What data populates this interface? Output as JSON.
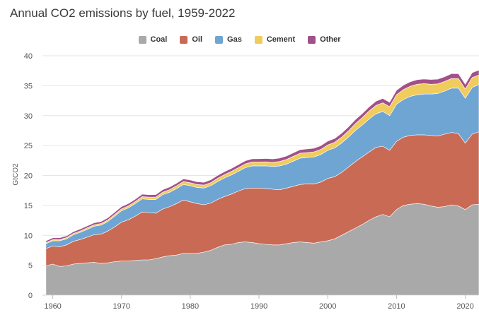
{
  "chart_data": {
    "type": "area",
    "stacked": true,
    "title": "Annual CO2 emissions by fuel, 1959-2022",
    "ylabel": "GtCO2",
    "xlabel": "",
    "ylim": [
      0,
      40
    ],
    "xlim": [
      1958.5,
      2022
    ],
    "yticks": [
      0,
      5,
      10,
      15,
      20,
      25,
      30,
      35,
      40
    ],
    "xticks": [
      1960,
      1970,
      1980,
      1990,
      2000,
      2010,
      2020
    ],
    "grid": true,
    "legend_position": "top-center",
    "x": [
      1959,
      1960,
      1961,
      1962,
      1963,
      1964,
      1965,
      1966,
      1967,
      1968,
      1969,
      1970,
      1971,
      1972,
      1973,
      1974,
      1975,
      1976,
      1977,
      1978,
      1979,
      1980,
      1981,
      1982,
      1983,
      1984,
      1985,
      1986,
      1987,
      1988,
      1989,
      1990,
      1991,
      1992,
      1993,
      1994,
      1995,
      1996,
      1997,
      1998,
      1999,
      2000,
      2001,
      2002,
      2003,
      2004,
      2005,
      2006,
      2007,
      2008,
      2009,
      2010,
      2011,
      2012,
      2013,
      2014,
      2015,
      2016,
      2017,
      2018,
      2019,
      2020,
      2021,
      2022
    ],
    "series": [
      {
        "name": "Coal",
        "color": "#a9a9a9",
        "values": [
          4.9,
          5.2,
          4.8,
          4.9,
          5.2,
          5.3,
          5.4,
          5.5,
          5.3,
          5.4,
          5.6,
          5.7,
          5.7,
          5.8,
          5.9,
          5.9,
          6.1,
          6.4,
          6.6,
          6.7,
          7.0,
          7.0,
          7.0,
          7.2,
          7.5,
          8.0,
          8.4,
          8.5,
          8.8,
          8.9,
          8.8,
          8.6,
          8.5,
          8.4,
          8.4,
          8.6,
          8.8,
          8.9,
          8.8,
          8.7,
          8.9,
          9.1,
          9.4,
          10.0,
          10.6,
          11.2,
          11.8,
          12.5,
          13.1,
          13.5,
          13.1,
          14.3,
          15.0,
          15.2,
          15.3,
          15.2,
          14.9,
          14.7,
          14.8,
          15.1,
          14.9,
          14.3,
          15.1,
          15.2
        ]
      },
      {
        "name": "Oil",
        "color": "#c96a55",
        "values": [
          2.9,
          3.0,
          3.3,
          3.5,
          3.8,
          4.0,
          4.3,
          4.6,
          4.9,
          5.3,
          5.8,
          6.5,
          6.9,
          7.4,
          8.0,
          7.9,
          7.6,
          8.0,
          8.2,
          8.6,
          8.9,
          8.6,
          8.3,
          7.9,
          7.9,
          8.0,
          8.1,
          8.4,
          8.6,
          8.9,
          9.1,
          9.3,
          9.3,
          9.3,
          9.2,
          9.3,
          9.4,
          9.6,
          9.8,
          9.9,
          10.0,
          10.4,
          10.4,
          10.5,
          10.8,
          11.1,
          11.3,
          11.4,
          11.6,
          11.4,
          11.1,
          11.4,
          11.4,
          11.5,
          11.5,
          11.6,
          11.8,
          11.9,
          12.1,
          12.1,
          12.1,
          11.1,
          11.8,
          12.1
        ]
      },
      {
        "name": "Gas",
        "color": "#6fa5d3",
        "values": [
          0.8,
          0.9,
          1.0,
          1.0,
          1.1,
          1.2,
          1.3,
          1.4,
          1.5,
          1.6,
          1.8,
          1.9,
          2.0,
          2.1,
          2.2,
          2.2,
          2.3,
          2.4,
          2.4,
          2.5,
          2.6,
          2.7,
          2.7,
          2.8,
          2.9,
          3.0,
          3.1,
          3.2,
          3.3,
          3.5,
          3.7,
          3.7,
          3.8,
          3.8,
          4.0,
          4.0,
          4.2,
          4.4,
          4.4,
          4.5,
          4.6,
          4.7,
          4.8,
          4.9,
          5.0,
          5.2,
          5.3,
          5.5,
          5.6,
          5.8,
          5.8,
          6.2,
          6.3,
          6.5,
          6.7,
          6.8,
          6.9,
          7.1,
          7.2,
          7.4,
          7.6,
          7.5,
          7.8,
          7.9
        ]
      },
      {
        "name": "Cement",
        "color": "#f0cc5d",
        "values": [
          0.17,
          0.18,
          0.19,
          0.2,
          0.21,
          0.23,
          0.24,
          0.25,
          0.26,
          0.27,
          0.29,
          0.31,
          0.33,
          0.35,
          0.37,
          0.38,
          0.39,
          0.41,
          0.44,
          0.46,
          0.48,
          0.49,
          0.49,
          0.5,
          0.52,
          0.54,
          0.56,
          0.58,
          0.61,
          0.63,
          0.65,
          0.66,
          0.68,
          0.71,
          0.74,
          0.78,
          0.81,
          0.83,
          0.84,
          0.85,
          0.86,
          0.9,
          0.94,
          1.0,
          1.05,
          1.15,
          1.25,
          1.35,
          1.4,
          1.45,
          1.5,
          1.6,
          1.65,
          1.7,
          1.75,
          1.75,
          1.65,
          1.6,
          1.6,
          1.6,
          1.6,
          1.55,
          1.65,
          1.6
        ]
      },
      {
        "name": "Other",
        "color": "#a2508a",
        "values": [
          0.3,
          0.3,
          0.3,
          0.3,
          0.3,
          0.31,
          0.32,
          0.33,
          0.34,
          0.35,
          0.36,
          0.37,
          0.38,
          0.39,
          0.4,
          0.4,
          0.41,
          0.42,
          0.43,
          0.44,
          0.45,
          0.45,
          0.45,
          0.46,
          0.47,
          0.48,
          0.49,
          0.5,
          0.51,
          0.52,
          0.53,
          0.54,
          0.55,
          0.55,
          0.56,
          0.57,
          0.58,
          0.59,
          0.6,
          0.61,
          0.62,
          0.63,
          0.64,
          0.65,
          0.66,
          0.67,
          0.68,
          0.69,
          0.7,
          0.71,
          0.72,
          0.73,
          0.74,
          0.75,
          0.76,
          0.77,
          0.78,
          0.79,
          0.8,
          0.81,
          0.82,
          0.8,
          0.82,
          0.82
        ]
      }
    ]
  }
}
